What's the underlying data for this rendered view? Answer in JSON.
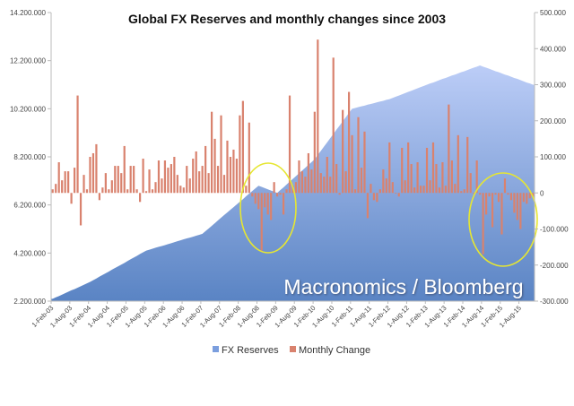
{
  "chart_data": {
    "type": "area+bar",
    "title": "Global FX Reserves and monthly changes since 2003",
    "watermark": "Macronomics / Bloomberg",
    "y_left": {
      "range": [
        2200000,
        14200000
      ],
      "ticks": [
        "2.200.000",
        "4.200.000",
        "6.200.000",
        "8.200.000",
        "10.200.000",
        "12.200.000",
        "14.200.000"
      ]
    },
    "y_right": {
      "range": [
        -300000,
        500000
      ],
      "ticks": [
        "-300.000",
        "-200.000",
        "-100.000",
        "0",
        "100.000",
        "200.000",
        "300.000",
        "400.000",
        "500.000"
      ]
    },
    "x_ticks": [
      "1-Feb-03",
      "1-Aug-03",
      "1-Feb-04",
      "1-Aug-04",
      "1-Feb-05",
      "1-Aug-05",
      "1-Feb-06",
      "1-Aug-06",
      "1-Feb-07",
      "1-Aug-07",
      "1-Feb-08",
      "1-Aug-08",
      "1-Feb-09",
      "1-Aug-09",
      "1-Feb-10",
      "1-Aug-10",
      "1-Feb-11",
      "1-Aug-11",
      "1-Feb-12",
      "1-Aug-12",
      "1-Feb-13",
      "1-Aug-13",
      "1-Feb-14",
      "1-Aug-14",
      "1-Feb-15",
      "1-Aug-15"
    ],
    "x_range": [
      "Feb-03",
      "Dec-15"
    ],
    "legend_position": "bottom",
    "grid": false,
    "series": [
      {
        "name": "FX Reserves",
        "type": "area",
        "axis": "left",
        "color": "#6f95d6",
        "values": [
          2300000,
          2360000,
          2410000,
          2470000,
          2530000,
          2590000,
          2650000,
          2700000,
          2760000,
          2820000,
          2880000,
          2940000,
          3000000,
          3070000,
          3140000,
          3220000,
          3290000,
          3360000,
          3430000,
          3510000,
          3580000,
          3650000,
          3720000,
          3790000,
          3870000,
          3940000,
          4010000,
          4080000,
          4160000,
          4230000,
          4300000,
          4340000,
          4380000,
          4420000,
          4460000,
          4490000,
          4530000,
          4570000,
          4610000,
          4650000,
          4690000,
          4730000,
          4770000,
          4810000,
          4840000,
          4880000,
          4920000,
          4960000,
          5000000,
          5110000,
          5220000,
          5330000,
          5440000,
          5560000,
          5670000,
          5780000,
          5890000,
          6000000,
          6110000,
          6220000,
          6330000,
          6440000,
          6560000,
          6670000,
          6780000,
          6890000,
          7000000,
          6950000,
          6900000,
          6850000,
          6800000,
          6750000,
          6700000,
          6820000,
          6930000,
          7050000,
          7170000,
          7280000,
          7400000,
          7520000,
          7630000,
          7750000,
          7870000,
          7980000,
          8100000,
          8280000,
          8450000,
          8630000,
          8800000,
          8980000,
          9150000,
          9330000,
          9500000,
          9680000,
          9850000,
          10030000,
          10200000,
          10230000,
          10270000,
          10300000,
          10330000,
          10370000,
          10400000,
          10430000,
          10470000,
          10500000,
          10530000,
          10570000,
          10600000,
          10650000,
          10700000,
          10750000,
          10800000,
          10850000,
          10900000,
          10950000,
          11000000,
          11050000,
          11100000,
          11150000,
          11200000,
          11250000,
          11290000,
          11340000,
          11390000,
          11440000,
          11480000,
          11530000,
          11580000,
          11620000,
          11670000,
          11720000,
          11760000,
          11810000,
          11860000,
          11910000,
          11950000,
          12000000,
          11950000,
          11910000,
          11860000,
          11810000,
          11760000,
          11720000,
          11670000,
          11620000,
          11580000,
          11530000,
          11480000,
          11440000,
          11390000,
          11340000,
          11290000,
          11250000,
          11200000
        ]
      },
      {
        "name": "Monthly Change",
        "type": "bar",
        "axis": "right",
        "color": "#d9826e",
        "values": [
          10000,
          25000,
          85000,
          35000,
          60000,
          60000,
          -30000,
          70000,
          270000,
          -90000,
          50000,
          10000,
          100000,
          110000,
          135000,
          -20000,
          15000,
          55000,
          10000,
          35000,
          75000,
          75000,
          55000,
          130000,
          10000,
          75000,
          75000,
          10000,
          -25000,
          95000,
          5000,
          65000,
          10000,
          30000,
          90000,
          40000,
          90000,
          70000,
          80000,
          100000,
          50000,
          20000,
          15000,
          75000,
          40000,
          95000,
          115000,
          60000,
          75000,
          130000,
          55000,
          225000,
          150000,
          75000,
          215000,
          50000,
          145000,
          100000,
          120000,
          95000,
          215000,
          255000,
          20000,
          195000,
          -10000,
          -30000,
          -45000,
          -160000,
          -40000,
          -60000,
          -75000,
          30000,
          -10000,
          -5000,
          -60000,
          10000,
          270000,
          20000,
          30000,
          90000,
          60000,
          45000,
          110000,
          65000,
          225000,
          425000,
          55000,
          45000,
          100000,
          45000,
          375000,
          80000,
          -5000,
          230000,
          60000,
          280000,
          160000,
          10000,
          210000,
          70000,
          170000,
          -70000,
          25000,
          -20000,
          -25000,
          10000,
          65000,
          40000,
          140000,
          30000,
          0,
          -10000,
          125000,
          35000,
          140000,
          80000,
          15000,
          85000,
          20000,
          20000,
          125000,
          35000,
          140000,
          80000,
          15000,
          85000,
          20000,
          245000,
          90000,
          25000,
          160000,
          5000,
          10000,
          155000,
          55000,
          0,
          90000,
          -5000,
          -170000,
          -60000,
          -10000,
          -95000,
          -5000,
          -25000,
          -115000,
          40000,
          -5000,
          -20000,
          -55000,
          -75000,
          -100000,
          -25000,
          -30000,
          -15000,
          -10000
        ]
      }
    ],
    "annotations": [
      {
        "type": "ellipse",
        "color": "#e6e632",
        "around": "Aug-08 to Mar-09"
      },
      {
        "type": "ellipse",
        "color": "#e6e632",
        "around": "Jul-14 to Dec-15"
      }
    ]
  }
}
